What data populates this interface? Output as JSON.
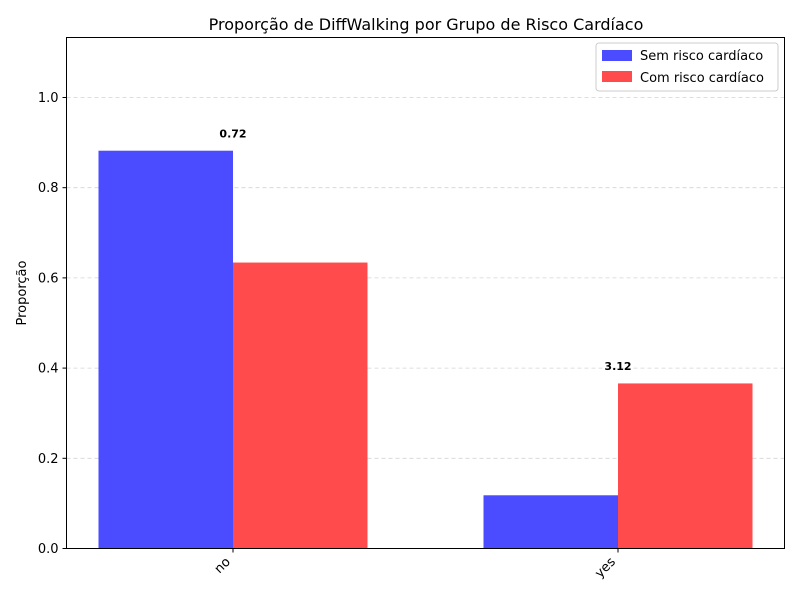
{
  "chart_data": {
    "type": "bar",
    "title": "Proporção de DiffWalking por Grupo de Risco Cardíaco",
    "xlabel": "",
    "ylabel": "Proporção",
    "categories": [
      "no",
      "yes"
    ],
    "series": [
      {
        "name": "Sem risco cardíaco",
        "values": [
          0.882,
          0.118
        ],
        "color": "#4b4bff"
      },
      {
        "name": "Com risco cardíaco",
        "values": [
          0.634,
          0.366
        ],
        "color": "#ff4b4b"
      }
    ],
    "annotations": [
      {
        "category": "no",
        "text": "0.72",
        "y": 0.92
      },
      {
        "category": "yes",
        "text": "3.12",
        "y": 0.405
      }
    ],
    "ylim": [
      0,
      1.133
    ],
    "yticks": [
      "0.0",
      "0.2",
      "0.4",
      "0.6",
      "0.8",
      "1.0"
    ],
    "grid": "y",
    "legend_position": "top-right"
  }
}
